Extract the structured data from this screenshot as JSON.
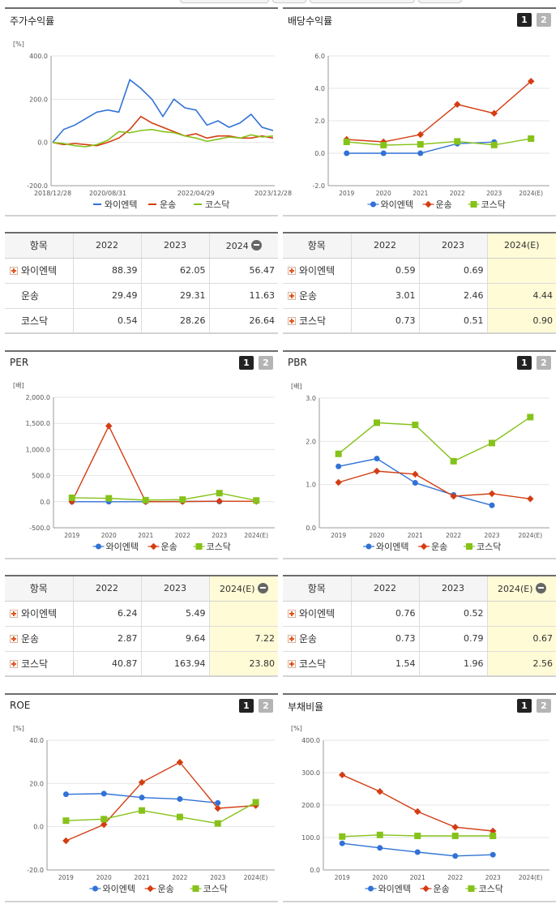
{
  "series_names": [
    "와이엔텍",
    "운송",
    "코스닥"
  ],
  "colors": {
    "와이엔텍": "#3172d6",
    "운송": "#d43d12",
    "코스닥": "#86c21a"
  },
  "charts": [
    {
      "type": "line",
      "title": "주가수익률",
      "unit": "[%]",
      "has_buttons": false,
      "ylim": [
        -200,
        400
      ],
      "yticks": [
        "400.0",
        "200.0",
        "0.0",
        "-200.0"
      ],
      "ytick_values": [
        400,
        200,
        0,
        -200
      ],
      "categories": [
        "2018/12/28",
        "2020/08/31",
        "2022/04/29",
        "2023/12/28"
      ]
    },
    {
      "type": "line",
      "title": "배당수익률",
      "unit": "",
      "has_buttons": true,
      "ylim": [
        -2,
        6
      ],
      "yticks": [
        "6.0",
        "4.0",
        "2.0",
        "0.0",
        "-2.0"
      ],
      "ytick_values": [
        6,
        4,
        2,
        0,
        -2
      ],
      "categories": [
        "2019",
        "2020",
        "2021",
        "2022",
        "2023",
        "2024(E)"
      ]
    },
    {
      "type": "line",
      "title": "PER",
      "unit": "[배]",
      "has_buttons": true,
      "ylim": [
        -500,
        2000
      ],
      "yticks": [
        "2,000.0",
        "1,500.0",
        "1,000.0",
        "500.0",
        "0.0",
        "-500.0"
      ],
      "ytick_values": [
        2000,
        1500,
        1000,
        500,
        0,
        -500
      ],
      "categories": [
        "2019",
        "2020",
        "2021",
        "2022",
        "2023",
        "2024(E)"
      ]
    },
    {
      "type": "line",
      "title": "PBR",
      "unit": "[배]",
      "has_buttons": true,
      "ylim": [
        0,
        3
      ],
      "yticks": [
        "3.0",
        "2.0",
        "1.0",
        "0.0"
      ],
      "ytick_values": [
        3,
        2,
        1,
        0
      ],
      "categories": [
        "2019",
        "2020",
        "2021",
        "2022",
        "2023",
        "2024(E)"
      ]
    },
    {
      "type": "line",
      "title": "ROE",
      "unit": "[%]",
      "has_buttons": true,
      "ylim": [
        -20,
        40
      ],
      "yticks": [
        "40.0",
        "20.0",
        "0.0",
        "-20.0"
      ],
      "ytick_values": [
        40,
        20,
        0,
        -20
      ],
      "categories": [
        "2019",
        "2020",
        "2021",
        "2022",
        "2023",
        "2024(E)"
      ]
    },
    {
      "type": "line",
      "title": "부채비율",
      "unit": "[%]",
      "has_buttons": true,
      "ylim": [
        0,
        400
      ],
      "yticks": [
        "400.0",
        "300.0",
        "200.0",
        "100.0",
        "0.0"
      ],
      "ytick_values": [
        400,
        300,
        200,
        100,
        0
      ],
      "categories": [
        "2019",
        "2020",
        "2021",
        "2022",
        "2023",
        "2024(E)"
      ]
    }
  ],
  "chart_data": [
    {
      "type": "line",
      "title": "주가수익률",
      "x": [
        "2018/12/28",
        "2019/04",
        "2019/08",
        "2019/12",
        "2020/04",
        "2020/08/31",
        "2020/12",
        "2021/02",
        "2021/04",
        "2021/06",
        "2021/09",
        "2021/12",
        "2022/02",
        "2022/04/29",
        "2022/07",
        "2022/10",
        "2023/01",
        "2023/04",
        "2023/07",
        "2023/10",
        "2023/12/28"
      ],
      "series": [
        {
          "name": "와이엔텍",
          "values": [
            0,
            60,
            80,
            110,
            140,
            150,
            140,
            290,
            250,
            200,
            120,
            200,
            160,
            150,
            80,
            100,
            70,
            90,
            130,
            70,
            55
          ]
        },
        {
          "name": "운송",
          "values": [
            0,
            -10,
            -5,
            -10,
            -15,
            0,
            20,
            60,
            120,
            90,
            70,
            50,
            30,
            40,
            20,
            30,
            30,
            20,
            20,
            30,
            20
          ]
        },
        {
          "name": "코스닥",
          "values": [
            0,
            -5,
            -15,
            -20,
            -10,
            10,
            50,
            45,
            55,
            60,
            50,
            45,
            30,
            20,
            5,
            15,
            25,
            20,
            35,
            25,
            30
          ]
        }
      ],
      "ylim": [
        -200,
        400
      ]
    },
    {
      "type": "line",
      "title": "배당수익률",
      "categories": [
        "2019",
        "2020",
        "2021",
        "2022",
        "2023",
        "2024(E)"
      ],
      "series": [
        {
          "name": "와이엔텍",
          "values": [
            0.0,
            0.0,
            0.0,
            0.59,
            0.69,
            null
          ]
        },
        {
          "name": "운송",
          "values": [
            0.85,
            0.7,
            1.15,
            3.01,
            2.46,
            4.44
          ]
        },
        {
          "name": "코스닥",
          "values": [
            0.7,
            0.5,
            0.55,
            0.73,
            0.51,
            0.9
          ]
        }
      ],
      "ylim": [
        -2,
        6
      ]
    },
    {
      "type": "line",
      "title": "PER",
      "categories": [
        "2019",
        "2020",
        "2021",
        "2022",
        "2023",
        "2024(E)"
      ],
      "series": [
        {
          "name": "와이엔텍",
          "values": [
            0,
            0,
            0,
            6.24,
            5.49,
            null
          ]
        },
        {
          "name": "운송",
          "values": [
            0,
            1450,
            0,
            2.87,
            9.64,
            7.22
          ]
        },
        {
          "name": "코스닥",
          "values": [
            75,
            65,
            30,
            40.87,
            163.94,
            23.8
          ]
        }
      ],
      "ylim": [
        -500,
        2000
      ]
    },
    {
      "type": "line",
      "title": "PBR",
      "categories": [
        "2019",
        "2020",
        "2021",
        "2022",
        "2023",
        "2024(E)"
      ],
      "series": [
        {
          "name": "와이엔텍",
          "values": [
            1.42,
            1.6,
            1.04,
            0.76,
            0.52,
            null
          ]
        },
        {
          "name": "운송",
          "values": [
            1.05,
            1.31,
            1.24,
            0.73,
            0.79,
            0.67
          ]
        },
        {
          "name": "코스닥",
          "values": [
            1.71,
            2.43,
            2.38,
            1.54,
            1.96,
            2.56
          ]
        }
      ],
      "ylim": [
        0,
        3
      ]
    },
    {
      "type": "line",
      "title": "ROE",
      "categories": [
        "2019",
        "2020",
        "2021",
        "2022",
        "2023",
        "2024(E)"
      ],
      "series": [
        {
          "name": "와이엔텍",
          "values": [
            15,
            15.3,
            13.5,
            12.8,
            11,
            null
          ]
        },
        {
          "name": "운송",
          "values": [
            -6.5,
            1,
            20.5,
            29.8,
            8.5,
            9.8
          ]
        },
        {
          "name": "코스닥",
          "values": [
            2.8,
            3.5,
            7.5,
            4.5,
            1.5,
            11.3
          ]
        }
      ],
      "ylim": [
        -20,
        40
      ]
    },
    {
      "type": "line",
      "title": "부채비율",
      "categories": [
        "2019",
        "2020",
        "2021",
        "2022",
        "2023",
        "2024(E)"
      ],
      "series": [
        {
          "name": "와이엔텍",
          "values": [
            82,
            68,
            55,
            43,
            47,
            null
          ]
        },
        {
          "name": "운송",
          "values": [
            293,
            242,
            180,
            132,
            120,
            null
          ]
        },
        {
          "name": "코스닥",
          "values": [
            103,
            108,
            105,
            105,
            105,
            null
          ]
        }
      ],
      "ylim": [
        0,
        400
      ]
    }
  ],
  "tables": [
    {
      "header": [
        "항목",
        "2022",
        "2023",
        "2024"
      ],
      "has_minus": true,
      "rows": [
        {
          "name": "와이엔텍",
          "plus": true,
          "values": [
            "88.39",
            "62.05",
            "56.47"
          ]
        },
        {
          "name": "운송",
          "plus": false,
          "values": [
            "29.49",
            "29.31",
            "11.63"
          ]
        },
        {
          "name": "코스닥",
          "plus": false,
          "values": [
            "0.54",
            "28.26",
            "26.64"
          ]
        }
      ],
      "estimate_col": false
    },
    {
      "header": [
        "항목",
        "2022",
        "2023",
        "2024(E)"
      ],
      "has_minus": false,
      "rows": [
        {
          "name": "와이엔텍",
          "plus": true,
          "values": [
            "0.59",
            "0.69",
            ""
          ]
        },
        {
          "name": "운송",
          "plus": true,
          "values": [
            "3.01",
            "2.46",
            "4.44"
          ]
        },
        {
          "name": "코스닥",
          "plus": true,
          "values": [
            "0.73",
            "0.51",
            "0.90"
          ]
        }
      ],
      "estimate_col": true
    },
    {
      "header": [
        "항목",
        "2022",
        "2023",
        "2024(E)"
      ],
      "has_minus": true,
      "rows": [
        {
          "name": "와이엔텍",
          "plus": true,
          "values": [
            "6.24",
            "5.49",
            ""
          ]
        },
        {
          "name": "운송",
          "plus": true,
          "values": [
            "2.87",
            "9.64",
            "7.22"
          ]
        },
        {
          "name": "코스닥",
          "plus": true,
          "values": [
            "40.87",
            "163.94",
            "23.80"
          ]
        }
      ],
      "estimate_col": true
    },
    {
      "header": [
        "항목",
        "2022",
        "2023",
        "2024(E)"
      ],
      "has_minus": true,
      "rows": [
        {
          "name": "와이엔텍",
          "plus": true,
          "values": [
            "0.76",
            "0.52",
            ""
          ]
        },
        {
          "name": "운송",
          "plus": true,
          "values": [
            "0.73",
            "0.79",
            "0.67"
          ]
        },
        {
          "name": "코스닥",
          "plus": true,
          "values": [
            "1.54",
            "1.96",
            "2.56"
          ]
        }
      ],
      "estimate_col": true
    }
  ],
  "buttons": [
    "1",
    "2"
  ]
}
